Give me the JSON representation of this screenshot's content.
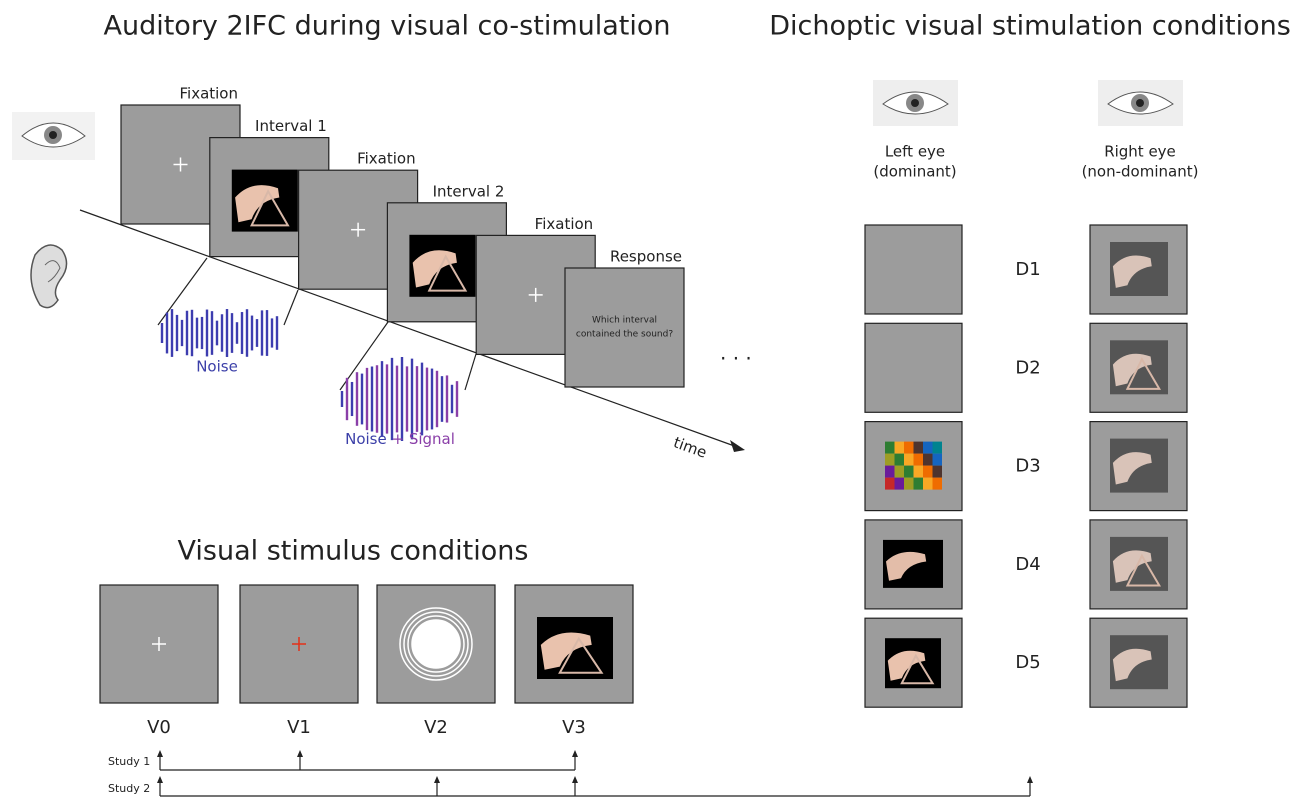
{
  "trial": {
    "title": "Auditory 2IFC during visual co-stimulation",
    "frames": [
      "Fixation",
      "Interval 1",
      "Fixation",
      "Interval 2",
      "Fixation",
      "Response"
    ],
    "response_text": [
      "Which interval",
      "contained the sound?"
    ],
    "noise_label": "Noise",
    "signal_label": {
      "noise": "Noise",
      "signal": "+ Signal"
    },
    "time_label": "time"
  },
  "dichoptic": {
    "title": "Dichoptic visual stimulation conditions",
    "left_eye": [
      "Left eye",
      "(dominant)"
    ],
    "right_eye": [
      "Right eye",
      "(non-dominant)"
    ],
    "conditions": [
      "D1",
      "D2",
      "D3",
      "D4",
      "D5"
    ]
  },
  "visual": {
    "title": "Visual stimulus conditions",
    "conditions": [
      "V0",
      "V1",
      "V2",
      "V3"
    ],
    "studies": [
      "Study 1",
      "Study 2"
    ]
  }
}
